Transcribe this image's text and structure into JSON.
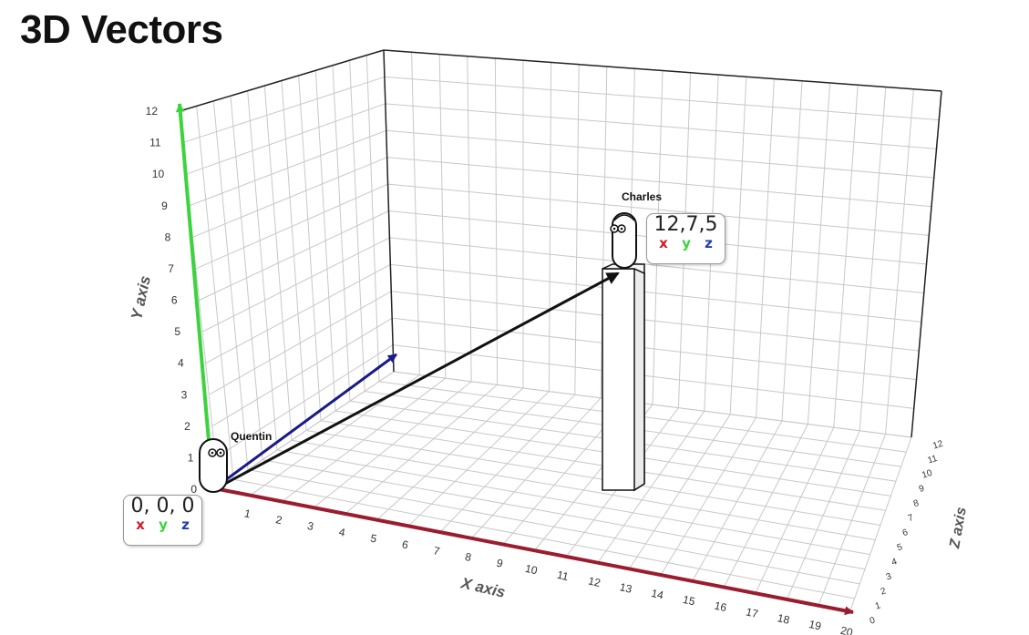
{
  "title": "3D Vectors",
  "colors": {
    "x_axis": "#9b1c2e",
    "y_axis": "#3cd43c",
    "z_axis": "#1f3fae",
    "grid": "#c8c8c8",
    "vector": "#111111",
    "z_direction_arrow": "#1a1a8a"
  },
  "axes": {
    "x": {
      "label": "X axis",
      "ticks": [
        "1",
        "2",
        "3",
        "4",
        "5",
        "6",
        "7",
        "8",
        "9",
        "10",
        "11",
        "12",
        "13",
        "14",
        "15",
        "16",
        "17",
        "18",
        "19",
        "20"
      ]
    },
    "y": {
      "label": "Y axis",
      "ticks": [
        "0",
        "1",
        "2",
        "3",
        "4",
        "5",
        "6",
        "7",
        "8",
        "9",
        "10",
        "11",
        "12"
      ]
    },
    "z": {
      "label": "Z axis",
      "ticks": [
        "0",
        "1",
        "2",
        "3",
        "4",
        "5",
        "6",
        "7",
        "8",
        "9",
        "10",
        "11",
        "12"
      ]
    }
  },
  "characters": {
    "start": {
      "name": "Quentin",
      "coords": "0, 0, 0"
    },
    "end": {
      "name": "Charles",
      "coords": "12,7,5"
    }
  },
  "coord_letters": {
    "x": "x",
    "y": "y",
    "z": "z"
  }
}
